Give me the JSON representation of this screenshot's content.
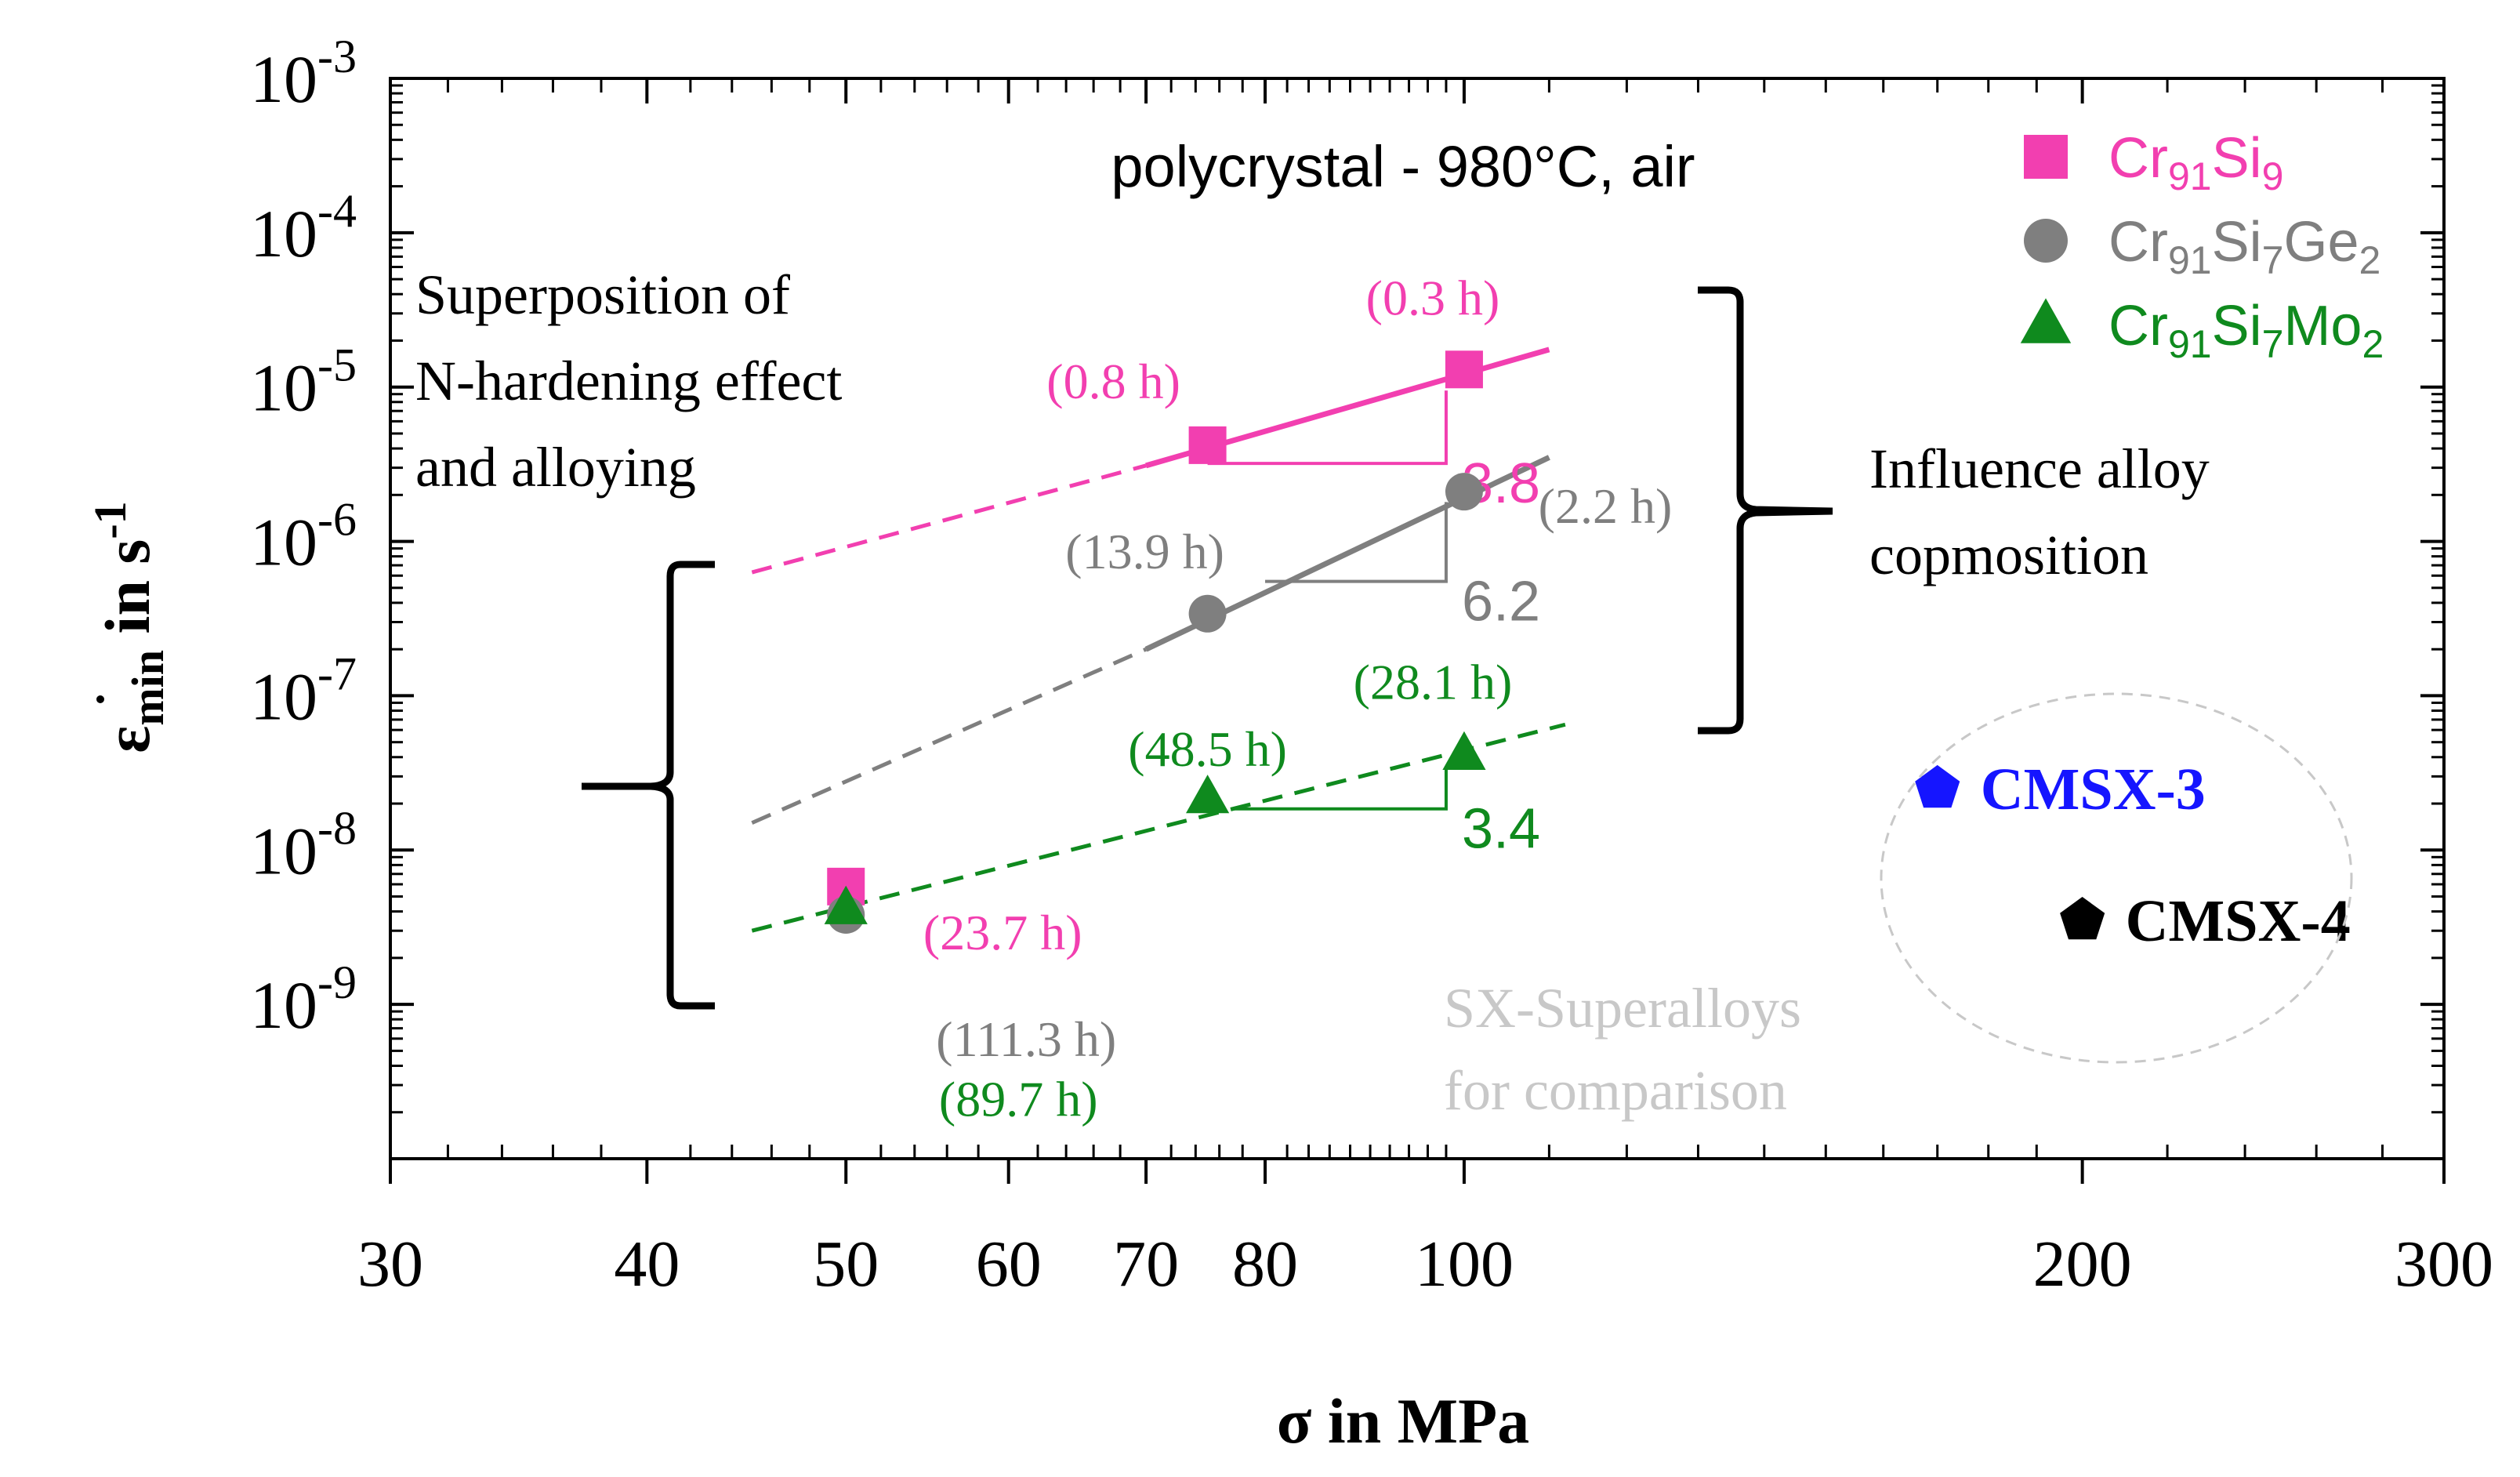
{
  "chart_data": {
    "type": "scatter",
    "title": "polycrystal - 980°C, air",
    "xlabel": "σ in MPa",
    "ylabel": {
      "base": "ε",
      "sub": "min",
      "mid": " in s",
      "sup": "-1"
    },
    "x_scale": "log",
    "y_scale": "log",
    "xlim": [
      30,
      300
    ],
    "ylim": [
      1e-10,
      0.001
    ],
    "x_ticks": [
      30,
      40,
      50,
      60,
      70,
      80,
      100,
      200,
      300
    ],
    "y_ticks": [
      {
        "exp": -9,
        "value": 1e-09
      },
      {
        "exp": -8,
        "value": 1e-08
      },
      {
        "exp": -7,
        "value": 1e-07
      },
      {
        "exp": -6,
        "value": 1e-06
      },
      {
        "exp": -5,
        "value": 1e-05
      },
      {
        "exp": -4,
        "value": 0.0001
      },
      {
        "exp": -3,
        "value": 0.001
      }
    ],
    "series": [
      {
        "name": "Cr91Si9",
        "legend": [
          [
            "Cr",
            ""
          ],
          [
            "91",
            "sub"
          ],
          [
            "Si",
            ""
          ],
          [
            "9",
            "sub"
          ]
        ],
        "color": "#f23fb0",
        "marker": "square",
        "points": [
          {
            "x": 50,
            "y": 5.8e-09,
            "label": "(23.7 h)"
          },
          {
            "x": 75,
            "y": 4.2e-06,
            "label": "(0.8 h)"
          },
          {
            "x": 100,
            "y": 1.3e-05,
            "label": "(0.3 h)"
          }
        ],
        "fit": {
          "solid": [
            [
              70,
              3.1e-06
            ],
            [
              110,
              1.75e-05
            ]
          ],
          "dashed": [
            [
              45,
              6.3e-07
            ],
            [
              70,
              3.1e-06
            ]
          ]
        },
        "slope": {
          "value": "3.8",
          "from": [
            75,
            3.2e-06
          ],
          "to": [
            98,
            3.2e-06
          ],
          "top_y": 9.5e-06
        }
      },
      {
        "name": "Cr91Si7Ge2",
        "legend": [
          [
            "Cr",
            ""
          ],
          [
            "91",
            "sub"
          ],
          [
            "Si",
            ""
          ],
          [
            "7",
            "sub"
          ],
          [
            "Ge",
            ""
          ],
          [
            "2",
            "sub"
          ]
        ],
        "color": "#7f7f7f",
        "marker": "circle",
        "points": [
          {
            "x": 50,
            "y": 3.8e-09,
            "label": "(111.3 h)"
          },
          {
            "x": 75,
            "y": 3.4e-07,
            "label": "(13.9 h)"
          },
          {
            "x": 100,
            "y": 2.1e-06,
            "label": "(2.2 h)"
          }
        ],
        "fit": {
          "solid": [
            [
              70,
              2e-07
            ],
            [
              110,
              3.5e-06
            ]
          ],
          "dashed": [
            [
              45,
              1.5e-08
            ],
            [
              70,
              2e-07
            ]
          ]
        },
        "slope": {
          "value": "6.2",
          "from": [
            80,
            5.5e-07
          ],
          "to": [
            98,
            5.5e-07
          ],
          "top_y": 1.8e-06
        }
      },
      {
        "name": "Cr91Si7Mo2",
        "legend": [
          [
            "Cr",
            ""
          ],
          [
            "91",
            "sub"
          ],
          [
            "Si",
            ""
          ],
          [
            "7",
            "sub"
          ],
          [
            "Mo",
            ""
          ],
          [
            "2",
            "sub"
          ]
        ],
        "color": "#0f8a1e",
        "marker": "triangle",
        "points": [
          {
            "x": 50,
            "y": 4.2e-09,
            "label": "(89.7 h)"
          },
          {
            "x": 75,
            "y": 2.2e-08,
            "label": "(48.5 h)"
          },
          {
            "x": 100,
            "y": 4.2e-08,
            "label": "(28.1 h)"
          }
        ],
        "fit": {
          "dashed": [
            [
              45,
              3e-09
            ],
            [
              112,
              6.5e-08
            ]
          ]
        },
        "slope": {
          "value": "3.4",
          "from": [
            77,
            1.85e-08
          ],
          "to": [
            98,
            1.85e-08
          ],
          "top_y": 3.5e-08
        }
      }
    ],
    "reference_points": [
      {
        "name": "CMSX-3",
        "x": 170,
        "y": 2.5e-08,
        "color": "#1515ff",
        "marker": "pentagon"
      },
      {
        "name": "CMSX-4",
        "x": 200,
        "y": 3.5e-09,
        "color": "#000000",
        "marker": "pentagon"
      }
    ],
    "annotations": {
      "left": [
        "Superposition of",
        "N-hardening effect",
        "and alloying"
      ],
      "right": [
        "Influence alloy",
        "copmosition"
      ],
      "comparison": [
        "SX-Superalloys",
        "for comparison"
      ]
    },
    "legend_position": "top-right",
    "grid": false
  }
}
